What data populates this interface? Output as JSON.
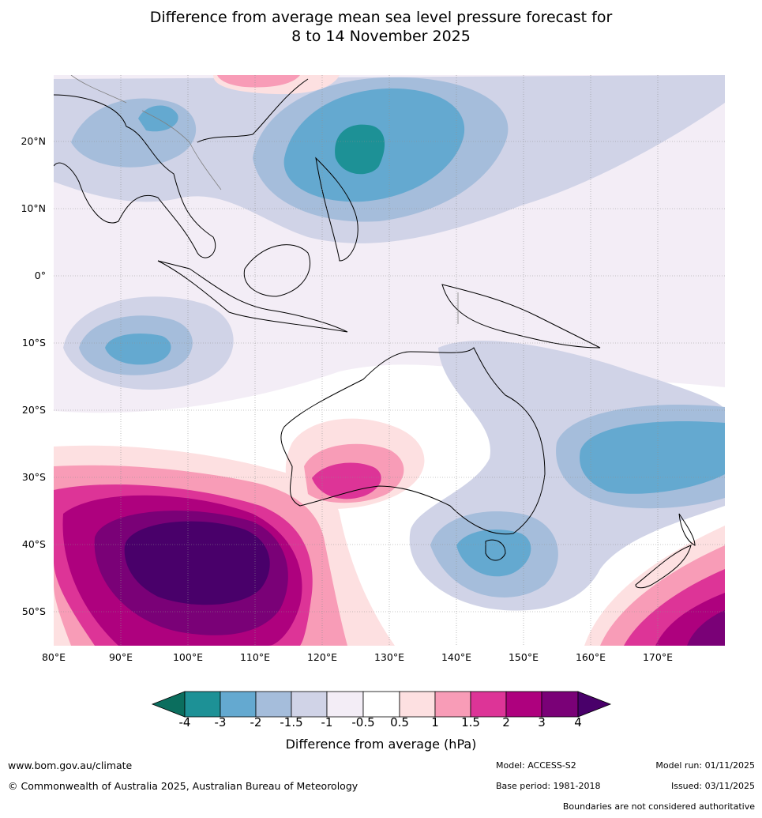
{
  "title": {
    "line1": "Difference from average mean sea level pressure forecast for",
    "line2": "8 to 14 November 2025"
  },
  "map": {
    "lat_labels": [
      "20°N",
      "10°N",
      "0°",
      "10°S",
      "20°S",
      "30°S",
      "40°S",
      "50°S"
    ],
    "lon_labels": [
      "80°E",
      "90°E",
      "100°E",
      "110°E",
      "120°E",
      "130°E",
      "140°E",
      "150°E",
      "160°E",
      "170°E"
    ],
    "colors": {
      "n4": "#0b6e5e",
      "n3": "#1d9196",
      "n2": "#64a9d0",
      "n15": "#a5bddb",
      "n1": "#d0d3e7",
      "n05": "#f3edf6",
      "zero": "#ffffff",
      "p05": "#fde0e1",
      "p1": "#f89cb7",
      "p15": "#dd3497",
      "p2": "#ae017e",
      "p3": "#7a0177",
      "p4": "#49006a",
      "land_outline": "#000000",
      "border": "#808080",
      "grid": "#909090"
    }
  },
  "legend": {
    "ticks": [
      "-4",
      "-3",
      "-2",
      "-1.5",
      "-1",
      "-0.5",
      "0.5",
      "1",
      "1.5",
      "2",
      "3",
      "4"
    ],
    "label": "Difference from average (hPa)"
  },
  "footer": {
    "website": "www.bom.gov.au/climate",
    "copyright": "© Commonwealth of Australia 2025, Australian Bureau of Meteorology",
    "model": "Model: ACCESS-S2",
    "model_run": "Model run: 01/11/2025",
    "base_period": "Base period: 1981-2018",
    "issued": "Issued: 03/11/2025",
    "disclaimer": "Boundaries are not considered authoritative"
  }
}
